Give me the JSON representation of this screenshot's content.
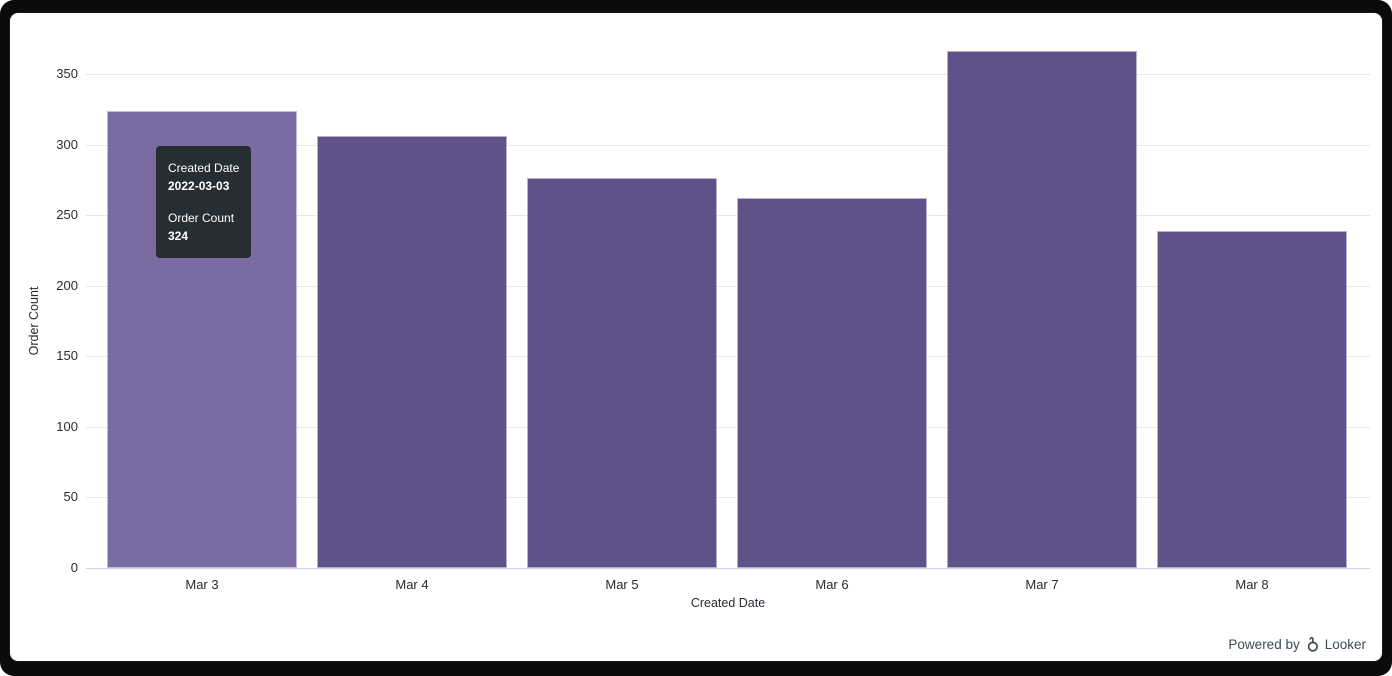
{
  "chart_data": {
    "type": "bar",
    "categories": [
      "Mar 3",
      "Mar 4",
      "Mar 5",
      "Mar 6",
      "Mar 7",
      "Mar 8"
    ],
    "values": [
      324,
      306,
      276,
      262,
      366,
      239
    ],
    "title": "",
    "xlabel": "Created Date",
    "ylabel": "Order Count",
    "ylim": [
      0,
      350
    ],
    "yticks": [
      0,
      50,
      100,
      150,
      200,
      250,
      300,
      350
    ],
    "grid": true,
    "legend": false,
    "bar_color": "#5f5289",
    "bar_hover_color": "#7a6ca3",
    "hovered_index": 0,
    "gridline_color": "#e6e6e6",
    "axis_line_color": "#ccd6eb",
    "tick_text_color": "#282d33"
  },
  "tooltip": {
    "dimension_label": "Created Date",
    "dimension_value": "2022-03-03",
    "measure_label": "Order Count",
    "measure_value": "324",
    "background": "#262d33",
    "text_color": "#ffffff"
  },
  "branding": {
    "powered_by": "Powered by",
    "brand": "Looker",
    "color": "#3f4a54"
  }
}
